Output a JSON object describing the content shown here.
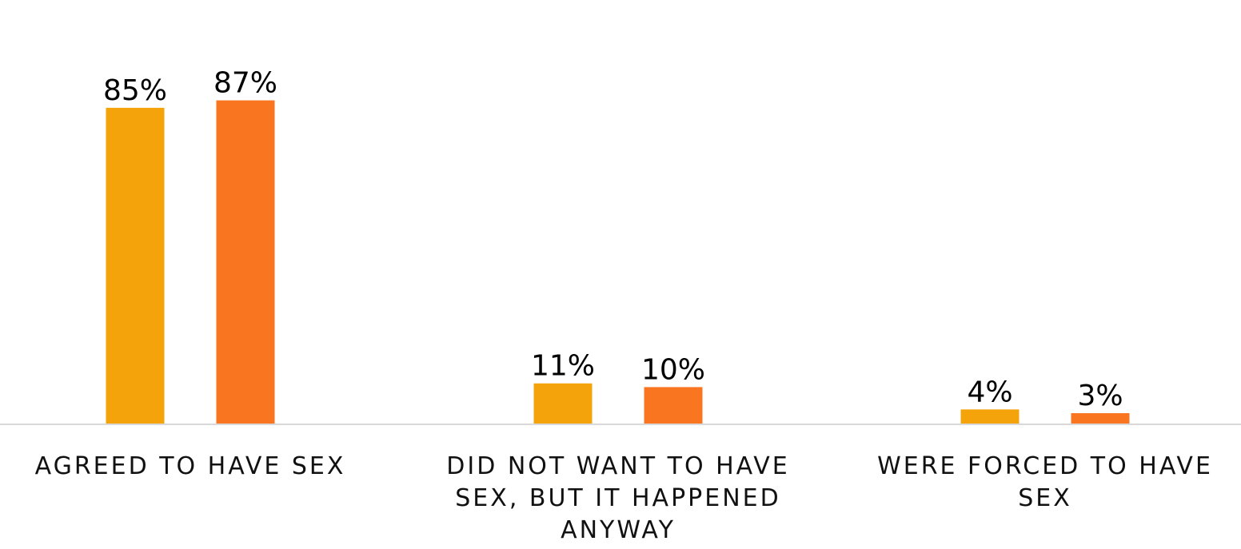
{
  "chart_data": {
    "type": "bar",
    "title": "",
    "xlabel": "",
    "ylabel": "",
    "ylim": [
      0,
      100
    ],
    "grid": false,
    "legend": "none",
    "categories": [
      [
        "AGREED TO HAVE SEX"
      ],
      [
        "DID NOT WANT TO HAVE",
        "SEX, BUT IT HAPPENED",
        "ANYWAY"
      ],
      [
        "WERE FORCED TO HAVE",
        "SEX"
      ]
    ],
    "series": [
      {
        "color": "#F4A30B",
        "values": [
          85,
          11,
          4
        ],
        "labels": [
          "85%",
          "11%",
          "4%"
        ]
      },
      {
        "color": "#F97520",
        "values": [
          87,
          10,
          3
        ],
        "labels": [
          "87%",
          "10%",
          "3%"
        ]
      }
    ],
    "baseline_color": "#D9D9D9"
  }
}
